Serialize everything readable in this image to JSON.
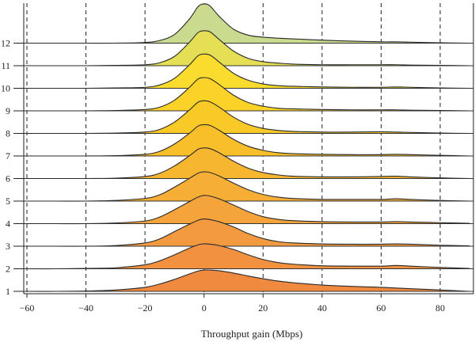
{
  "chart_data": {
    "type": "ridgeline",
    "title": "",
    "xlabel": "Throughput gain (Mbps)",
    "ylabel": "",
    "xlim": [
      -60,
      92
    ],
    "x_ticks": [
      -60,
      -40,
      -20,
      0,
      20,
      40,
      60,
      80
    ],
    "x_tick_labels": [
      "−60",
      "−40",
      "−20",
      "0",
      "20",
      "40",
      "60",
      "80"
    ],
    "grid": "vertical dashed lines at x ticks",
    "categories": [
      "1",
      "2",
      "3",
      "4",
      "5",
      "6",
      "7",
      "8",
      "9",
      "10",
      "11",
      "12"
    ],
    "x": [
      -60,
      -50,
      -40,
      -30,
      -20,
      -15,
      -10,
      -5,
      -2,
      0,
      2,
      5,
      10,
      15,
      20,
      25,
      30,
      40,
      50,
      60,
      65,
      70,
      80,
      90
    ],
    "series": [
      {
        "category": "1",
        "color": "#F08A3E",
        "values": [
          0.0,
          0.0,
          0.01,
          0.04,
          0.12,
          0.22,
          0.36,
          0.52,
          0.61,
          0.64,
          0.64,
          0.62,
          0.55,
          0.46,
          0.38,
          0.31,
          0.26,
          0.19,
          0.15,
          0.12,
          0.1,
          0.08,
          0.04,
          0.0
        ]
      },
      {
        "category": "2",
        "color": "#F29140",
        "values": [
          0.0,
          0.0,
          0.01,
          0.03,
          0.12,
          0.24,
          0.42,
          0.62,
          0.72,
          0.75,
          0.74,
          0.7,
          0.58,
          0.42,
          0.28,
          0.19,
          0.14,
          0.09,
          0.08,
          0.08,
          0.1,
          0.08,
          0.04,
          0.01
        ]
      },
      {
        "category": "3",
        "color": "#F39A40",
        "values": [
          0.0,
          0.0,
          0.0,
          0.02,
          0.1,
          0.22,
          0.44,
          0.66,
          0.78,
          0.82,
          0.8,
          0.74,
          0.58,
          0.38,
          0.23,
          0.14,
          0.1,
          0.07,
          0.06,
          0.06,
          0.07,
          0.06,
          0.03,
          0.01
        ]
      },
      {
        "category": "4",
        "color": "#F5A43C",
        "values": [
          0.0,
          0.0,
          0.0,
          0.02,
          0.08,
          0.2,
          0.42,
          0.66,
          0.8,
          0.85,
          0.83,
          0.75,
          0.56,
          0.36,
          0.21,
          0.13,
          0.09,
          0.06,
          0.05,
          0.05,
          0.06,
          0.05,
          0.03,
          0.01
        ]
      },
      {
        "category": "5",
        "color": "#F6AE36",
        "values": [
          0.0,
          0.0,
          0.0,
          0.02,
          0.08,
          0.19,
          0.42,
          0.68,
          0.84,
          0.88,
          0.86,
          0.76,
          0.54,
          0.34,
          0.2,
          0.12,
          0.08,
          0.05,
          0.05,
          0.05,
          0.07,
          0.05,
          0.02,
          0.0
        ]
      },
      {
        "category": "6",
        "color": "#F7B630",
        "values": [
          0.0,
          0.0,
          0.0,
          0.01,
          0.06,
          0.16,
          0.38,
          0.68,
          0.88,
          0.92,
          0.9,
          0.78,
          0.52,
          0.31,
          0.18,
          0.11,
          0.07,
          0.05,
          0.05,
          0.06,
          0.07,
          0.05,
          0.02,
          0.0
        ]
      },
      {
        "category": "7",
        "color": "#F8BF2A",
        "values": [
          0.0,
          0.0,
          0.0,
          0.01,
          0.05,
          0.14,
          0.36,
          0.68,
          0.9,
          0.94,
          0.92,
          0.78,
          0.5,
          0.29,
          0.17,
          0.1,
          0.07,
          0.05,
          0.04,
          0.04,
          0.05,
          0.04,
          0.02,
          0.0
        ]
      },
      {
        "category": "8",
        "color": "#F9C927",
        "values": [
          0.0,
          0.0,
          0.0,
          0.01,
          0.04,
          0.12,
          0.34,
          0.7,
          0.94,
          0.98,
          0.95,
          0.8,
          0.49,
          0.27,
          0.15,
          0.09,
          0.06,
          0.04,
          0.04,
          0.05,
          0.04,
          0.03,
          0.01,
          0.0
        ]
      },
      {
        "category": "9",
        "color": "#FAD228",
        "values": [
          0.0,
          0.0,
          0.0,
          0.01,
          0.04,
          0.11,
          0.32,
          0.7,
          0.96,
          1.0,
          0.97,
          0.8,
          0.47,
          0.25,
          0.14,
          0.08,
          0.06,
          0.04,
          0.03,
          0.03,
          0.03,
          0.02,
          0.01,
          0.0
        ]
      },
      {
        "category": "10",
        "color": "#F9DC2E",
        "values": [
          0.0,
          0.0,
          0.0,
          0.01,
          0.03,
          0.1,
          0.3,
          0.7,
          0.98,
          1.03,
          1.0,
          0.8,
          0.45,
          0.24,
          0.13,
          0.08,
          0.06,
          0.04,
          0.03,
          0.03,
          0.04,
          0.03,
          0.01,
          0.0
        ]
      },
      {
        "category": "11",
        "color": "#E5DF55",
        "values": [
          0.0,
          0.0,
          0.0,
          0.01,
          0.03,
          0.09,
          0.28,
          0.7,
          1.0,
          1.05,
          1.02,
          0.8,
          0.44,
          0.22,
          0.12,
          0.08,
          0.05,
          0.03,
          0.03,
          0.03,
          0.03,
          0.02,
          0.01,
          0.0
        ]
      },
      {
        "category": "12",
        "color": "#CADA8E",
        "values": [
          0.0,
          0.0,
          0.0,
          0.0,
          0.02,
          0.08,
          0.26,
          0.72,
          1.1,
          1.18,
          1.12,
          0.82,
          0.42,
          0.24,
          0.18,
          0.15,
          0.13,
          0.09,
          0.06,
          0.04,
          0.04,
          0.03,
          0.01,
          0.0
        ]
      }
    ]
  }
}
